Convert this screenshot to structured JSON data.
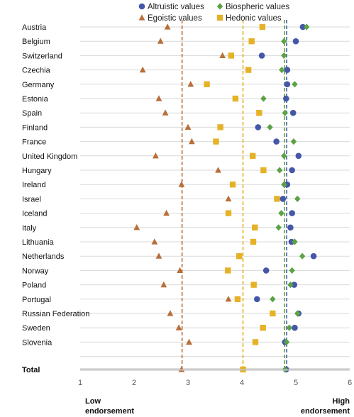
{
  "chart_data": {
    "type": "scatter",
    "title": "",
    "xlabel": "",
    "ylabel": "",
    "xlim": [
      1,
      6
    ],
    "xticks": [
      1,
      2,
      3,
      4,
      5,
      6
    ],
    "grid": "horizontal",
    "legend_position": "top",
    "countries": [
      "Austria",
      "Belgium",
      "Switzerland",
      "Czechia",
      "Germany",
      "Estonia",
      "Spain",
      "Finland",
      "France",
      "United Kingdom",
      "Hungary",
      "Ireland",
      "Israel",
      "Iceland",
      "Italy",
      "Lithuania",
      "Netherlands",
      "Norway",
      "Poland",
      "Portugal",
      "Russian Federation",
      "Sweden",
      "Slovenia"
    ],
    "total_label": "Total",
    "series": [
      {
        "name": "Altruistic values",
        "color": "#4557a8",
        "marker": "circle",
        "values": [
          5.13,
          5.0,
          4.37,
          4.84,
          4.84,
          4.82,
          4.95,
          4.3,
          4.64,
          5.05,
          4.93,
          4.84,
          4.76,
          4.93,
          4.9,
          4.92,
          5.33,
          4.45,
          4.97,
          4.28,
          5.05,
          4.98,
          4.8
        ],
        "total": 4.82,
        "mean_line": 4.83
      },
      {
        "name": "Biospheric values",
        "color": "#5ba345",
        "marker": "diamond",
        "values": [
          5.2,
          4.78,
          4.78,
          4.74,
          4.98,
          4.4,
          4.8,
          4.52,
          4.96,
          4.78,
          4.7,
          4.78,
          5.03,
          4.73,
          4.68,
          4.98,
          5.12,
          4.93,
          4.9,
          4.57,
          5.03,
          4.88,
          4.83
        ],
        "total": 4.8,
        "mean_line": 4.79
      },
      {
        "name": "Egoistic values",
        "color": "#b86f3a",
        "marker": "triangle",
        "values": [
          2.62,
          2.49,
          3.64,
          2.16,
          3.05,
          2.46,
          2.58,
          3.0,
          3.07,
          2.4,
          3.56,
          2.88,
          3.75,
          2.6,
          2.05,
          2.38,
          2.46,
          2.85,
          2.55,
          3.75,
          2.67,
          2.83,
          3.02
        ],
        "total": 2.88,
        "mean_line": 2.89
      },
      {
        "name": "Hedonic values",
        "color": "#e5b227",
        "marker": "square",
        "values": [
          4.38,
          4.18,
          3.8,
          4.12,
          3.35,
          3.88,
          4.32,
          3.6,
          3.52,
          4.2,
          4.4,
          3.83,
          4.65,
          3.75,
          4.24,
          4.21,
          3.95,
          3.74,
          4.22,
          3.92,
          4.57,
          4.39,
          4.25
        ],
        "total": 4.02,
        "mean_line": 4.02
      }
    ]
  },
  "labels": {
    "low": "Low\nendorsement",
    "high": "High\nendorsement"
  }
}
